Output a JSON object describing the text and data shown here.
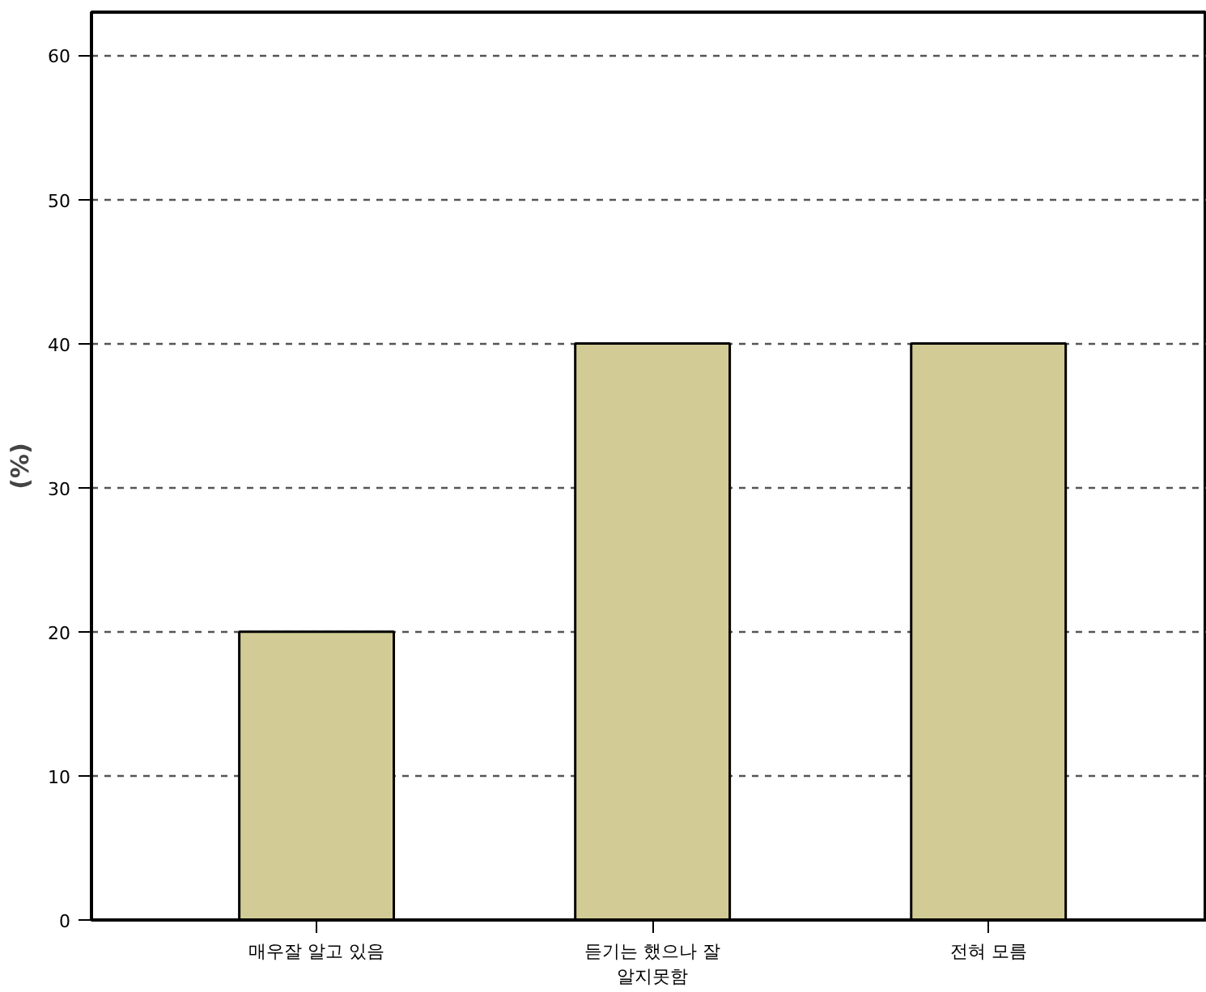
{
  "chart_data": {
    "type": "bar",
    "ylabel": "(%)",
    "categories": [
      "매우잘 알고 있음",
      "듣기는 했으나 잘\n알지못함",
      "전혀 모름"
    ],
    "values": [
      20,
      40,
      40
    ],
    "color": "#d2cb95",
    "ylim": [
      0,
      63
    ],
    "yticks": [
      0,
      10,
      20,
      30,
      40,
      50,
      60
    ],
    "grid": "y"
  }
}
